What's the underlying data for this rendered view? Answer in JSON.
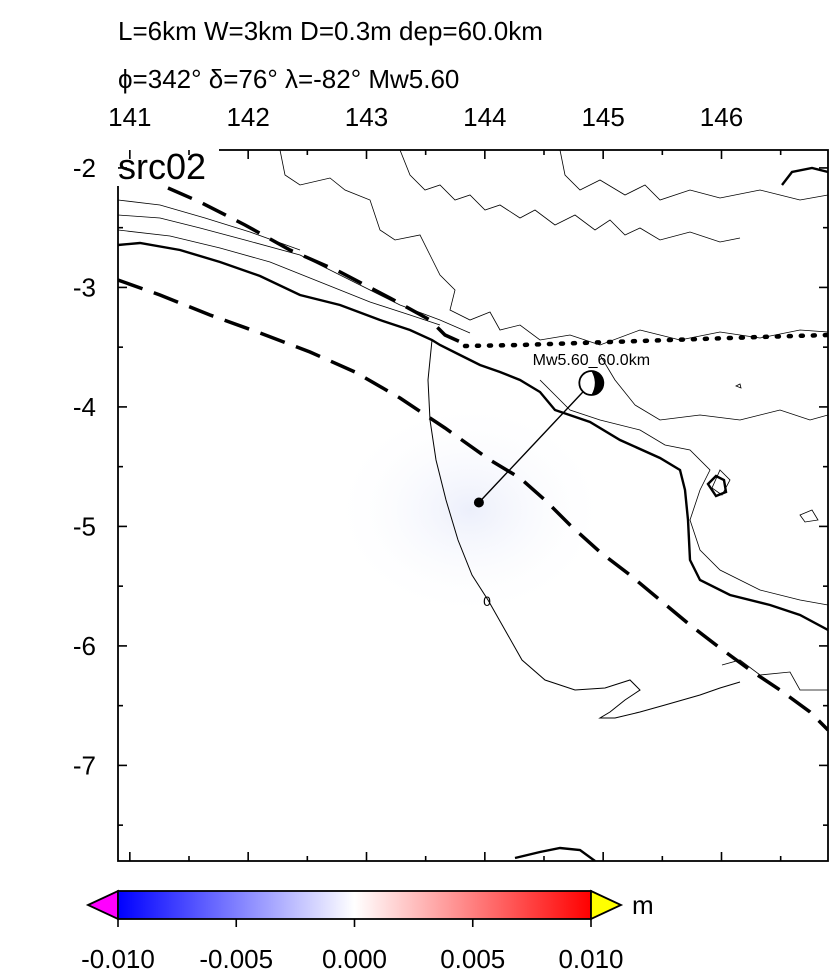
{
  "title": {
    "line1": "L=6km W=3km D=0.3m dep=60.0km",
    "line2": "ϕ=342° δ=76° λ=-82° Mw5.60"
  },
  "panel_label": "src02",
  "map": {
    "xlim": [
      140.9,
      146.9
    ],
    "ylim": [
      -7.8,
      -1.85
    ],
    "x_ticks": [
      "141",
      "142",
      "143",
      "144",
      "145",
      "146"
    ],
    "x_tick_values": [
      141,
      142,
      143,
      144,
      145,
      146
    ],
    "y_ticks": [
      "-2",
      "-3",
      "-4",
      "-5",
      "-6",
      "-7"
    ],
    "y_tick_values": [
      -2,
      -3,
      -4,
      -5,
      -6,
      -7
    ],
    "event": {
      "label": "Mw5.60_60.0km",
      "beachball_lon": 144.9,
      "beachball_lat": -3.8,
      "epicenter_lon": 143.95,
      "epicenter_lat": -4.8
    },
    "contour_label": "0"
  },
  "colorbar": {
    "unit": "m",
    "ticks": [
      "-0.010",
      "-0.005",
      "0.000",
      "0.005",
      "0.010"
    ],
    "tick_values": [
      -0.01,
      -0.005,
      0.0,
      0.005,
      0.01
    ],
    "range": [
      -0.01,
      0.01
    ],
    "colors": {
      "min": "#0000ff",
      "mid": "#ffffff",
      "max": "#ff0000",
      "below": "#ff00ff",
      "above": "#ffff00"
    }
  }
}
